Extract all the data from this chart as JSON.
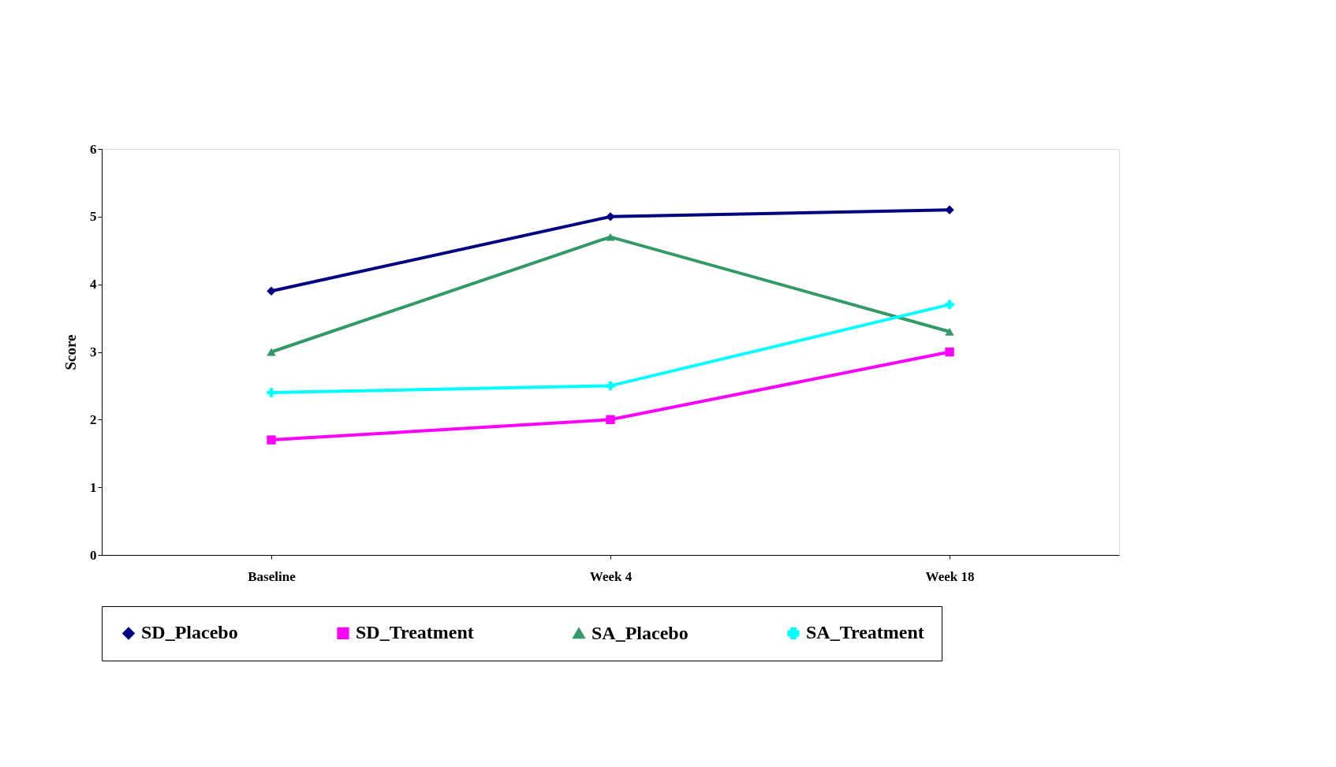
{
  "chart_data": {
    "type": "line",
    "ylabel": "Score",
    "categories": [
      "Baseline",
      "Week 4",
      "Week 18"
    ],
    "series": [
      {
        "name": "SD_Placebo",
        "color": "#000080",
        "marker": "diamond",
        "values": [
          3.9,
          5.0,
          5.1
        ]
      },
      {
        "name": "SD_Treatment",
        "color": "#ff00ff",
        "marker": "square",
        "values": [
          1.7,
          2.0,
          3.0
        ]
      },
      {
        "name": "SA_Placebo",
        "color": "#339966",
        "marker": "triangle",
        "values": [
          3.0,
          4.7,
          3.3
        ]
      },
      {
        "name": "SA_Treatment",
        "color": "#00ffff",
        "marker": "cross",
        "values": [
          2.4,
          2.5,
          3.7
        ]
      }
    ],
    "ylim": [
      0,
      6
    ],
    "yticks": [
      0,
      1,
      2,
      3,
      4,
      5,
      6
    ],
    "grid": false,
    "legend": "bottom"
  }
}
